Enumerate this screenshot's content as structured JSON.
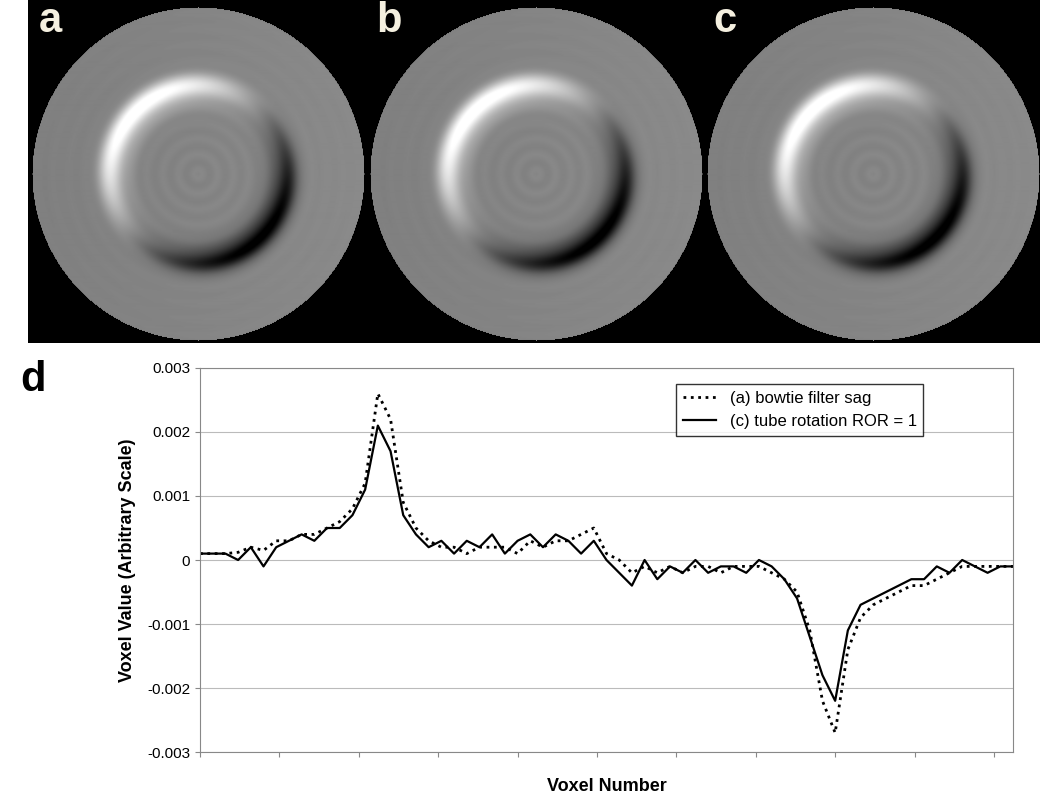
{
  "panel_labels": [
    "a",
    "b",
    "c",
    "d"
  ],
  "chart_data": {
    "type": "line",
    "x_label": "Voxel Number",
    "y_label": "Voxel Value (Arbitrary Scale)",
    "x": [
      0,
      4,
      8,
      12,
      16,
      20,
      24,
      28,
      32,
      36,
      40,
      44,
      48,
      52,
      56,
      60,
      64,
      68,
      72,
      76,
      80,
      84,
      88,
      92,
      96,
      100,
      104,
      108,
      112,
      116,
      120,
      124,
      128,
      132,
      136,
      140,
      144,
      148,
      152,
      156,
      160,
      164,
      168,
      172,
      176,
      180,
      184,
      188,
      192,
      196,
      200,
      204,
      208,
      212,
      216,
      220,
      224,
      228,
      232,
      236,
      240,
      244,
      248,
      252,
      256
    ],
    "xlim": [
      0,
      256
    ],
    "xticks": [
      0,
      25,
      50,
      75,
      100,
      125,
      150,
      175,
      200,
      225,
      250
    ],
    "ylim": [
      -0.003,
      0.003
    ],
    "yticks": [
      -0.003,
      -0.002,
      -0.001,
      0,
      0.001,
      0.002,
      0.003
    ],
    "tick_labels": "y",
    "grid": true,
    "legend": "upper right",
    "series": [
      {
        "name": "(a) bowtie filter sag",
        "color": "#000000",
        "line_style": "dotted",
        "values": [
          0.0001,
          0.0001,
          0.0001,
          0.00012,
          0.0002,
          0.00015,
          0.0003,
          0.0003,
          0.0004,
          0.0004,
          0.0005,
          0.0006,
          0.0008,
          0.0012,
          0.0026,
          0.0022,
          0.0009,
          0.0005,
          0.0003,
          0.0002,
          0.0002,
          0.0001,
          0.0002,
          0.0002,
          0.0002,
          0.0001,
          0.0003,
          0.0002,
          0.0003,
          0.0003,
          0.0004,
          0.0005,
          0.0001,
          0.0,
          -0.0002,
          -0.0001,
          -0.0002,
          -0.0001,
          -0.0002,
          -0.0001,
          -0.0001,
          -0.0002,
          -0.0001,
          -0.0001,
          -0.0001,
          -0.0002,
          -0.0003,
          -0.0005,
          -0.0011,
          -0.0022,
          -0.0027,
          -0.0014,
          -0.0009,
          -0.0007,
          -0.0006,
          -0.0005,
          -0.0004,
          -0.0004,
          -0.0003,
          -0.0002,
          -0.0001,
          -0.0001,
          -0.0001,
          -0.0001,
          -0.0001
        ]
      },
      {
        "name": "(c) tube rotation ROR = 1",
        "color": "#000000",
        "line_style": "solid",
        "values": [
          0.0001,
          0.0001,
          0.0001,
          0.0,
          0.0002,
          -0.0001,
          0.0002,
          0.0003,
          0.0004,
          0.0003,
          0.0005,
          0.0005,
          0.0007,
          0.0011,
          0.0021,
          0.0017,
          0.0007,
          0.0004,
          0.0002,
          0.0003,
          0.0001,
          0.0003,
          0.0002,
          0.0004,
          0.0001,
          0.0003,
          0.0004,
          0.0002,
          0.0004,
          0.0003,
          0.0001,
          0.0003,
          0.0,
          -0.0002,
          -0.0004,
          0.0,
          -0.0003,
          -0.0001,
          -0.0002,
          0.0,
          -0.0002,
          -0.0001,
          -0.0001,
          -0.0002,
          0.0,
          -0.0001,
          -0.0003,
          -0.0006,
          -0.0012,
          -0.0018,
          -0.0022,
          -0.0011,
          -0.0007,
          -0.0006,
          -0.0005,
          -0.0004,
          -0.0003,
          -0.0003,
          -0.0001,
          -0.0002,
          0.0,
          -0.0001,
          -0.0002,
          -0.0001,
          -0.0001
        ]
      }
    ]
  }
}
